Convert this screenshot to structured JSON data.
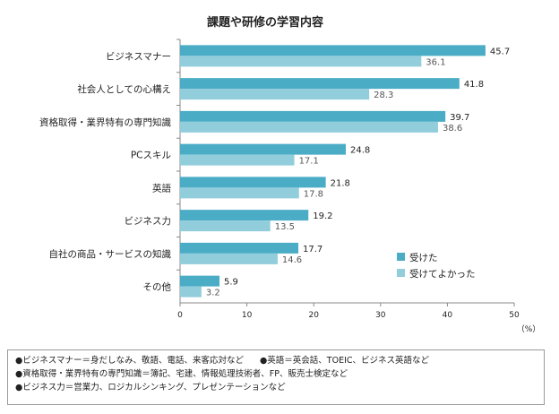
{
  "chart_data": {
    "type": "bar",
    "orientation": "horizontal",
    "title": "課題や研修の学習内容",
    "categories": [
      "ビジネスマナー",
      "社会人としての心構え",
      "資格取得・業界特有の専門知識",
      "PCスキル",
      "英語",
      "ビジネス力",
      "自社の商品・サービスの知識",
      "その他"
    ],
    "series": [
      {
        "name": "受けた",
        "color": "#4bacc6",
        "values": [
          45.7,
          41.8,
          39.7,
          24.8,
          21.8,
          19.2,
          17.7,
          5.9
        ],
        "labels": [
          "45.7",
          "41.8",
          "39.7",
          "24.8",
          "21.8",
          "19.2",
          "17.7",
          "5.9"
        ]
      },
      {
        "name": "受けてよかった",
        "color": "#92cddc",
        "values": [
          36.1,
          28.3,
          38.6,
          17.1,
          17.8,
          13.5,
          14.6,
          3.2
        ],
        "labels": [
          "36.1",
          "28.3",
          "38.6",
          "17.1",
          "17.8",
          "13.5",
          "14.6",
          "3.2"
        ]
      }
    ],
    "xlim": [
      0,
      50
    ],
    "xticks": [
      "0",
      "10",
      "20",
      "30",
      "40",
      "50"
    ],
    "xunit": "（%）",
    "legend_position": "right-lower-inside"
  },
  "notes": [
    [
      "●ビジネスマナー＝身だしなみ、敬語、電話、来客応対など",
      "●英語＝英会話、TOEIC、ビジネス英語など"
    ],
    [
      "●資格取得・業界特有の専門知識＝簿記、宅建、情報処理技術者、FP、販売士検定など"
    ],
    [
      "●ビジネス力＝営業力、ロジカルシンキング、プレゼンテーションなど"
    ]
  ]
}
